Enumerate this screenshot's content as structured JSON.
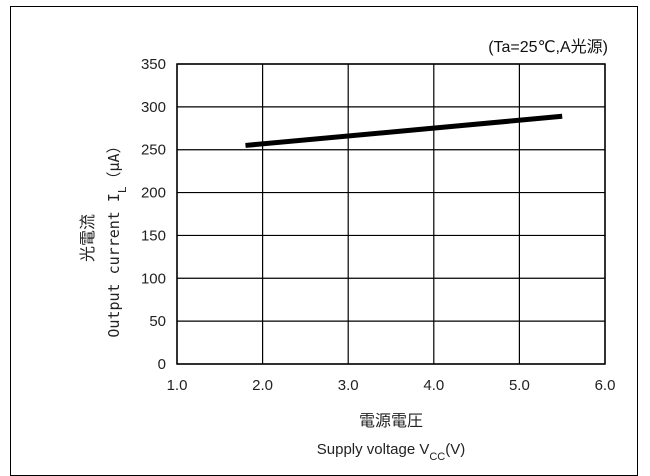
{
  "chart_data": {
    "type": "line",
    "condition": "(Ta=25℃,A光源)",
    "xlabel_jp": "電源電圧",
    "xlabel_en": "Supply voltage V",
    "xlabel_sub": "CC",
    "xlabel_unit": "(V)",
    "ylabel_jp": "光電流",
    "ylabel_en": "Output current I",
    "ylabel_sub": "L",
    "ylabel_unit": "（μA）",
    "xlim": [
      1.0,
      6.0
    ],
    "ylim": [
      0,
      350
    ],
    "xticks": [
      "1.0",
      "2.0",
      "3.0",
      "4.0",
      "5.0",
      "6.0"
    ],
    "yticks": [
      "0",
      "50",
      "100",
      "150",
      "200",
      "250",
      "300",
      "350"
    ],
    "grid": true,
    "series": [
      {
        "x": [
          1.8,
          5.5
        ],
        "y": [
          255,
          289
        ]
      }
    ],
    "line_color": "#000000"
  }
}
